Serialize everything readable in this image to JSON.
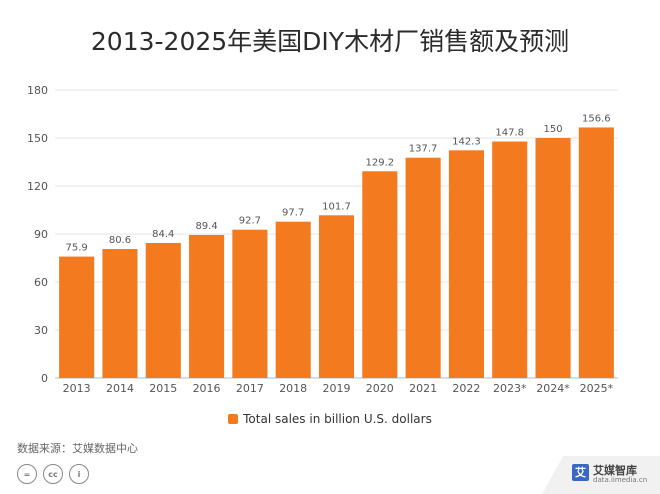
{
  "title": "2013-2025年美国DIY木材厂销售额及预测",
  "legend_label": "Total sales in billion U.S. dollars",
  "source_text": "数据来源：艾媒数据中心",
  "brand": {
    "name": "艾媒智库",
    "url": "data.iimedia.cn",
    "mark": "艾"
  },
  "license_icons": [
    "=",
    "cc",
    "i"
  ],
  "colors": {
    "bar": "#f47a20",
    "grid": "#e4e4e4",
    "axis": "#bbbbbb"
  },
  "chart_data": {
    "type": "bar",
    "categories": [
      "2013",
      "2014",
      "2015",
      "2016",
      "2017",
      "2018",
      "2019",
      "2020",
      "2021",
      "2022",
      "2023*",
      "2024*",
      "2025*"
    ],
    "series": [
      {
        "name": "Total sales in billion U.S. dollars",
        "values": [
          75.9,
          80.6,
          84.4,
          89.4,
          92.7,
          97.7,
          101.7,
          129.2,
          137.7,
          142.3,
          147.8,
          150,
          156.6
        ]
      }
    ],
    "ylim": [
      0,
      180
    ],
    "yticks": [
      0,
      30,
      60,
      90,
      120,
      150,
      180
    ],
    "grid": true,
    "legend_position": "bottom"
  }
}
